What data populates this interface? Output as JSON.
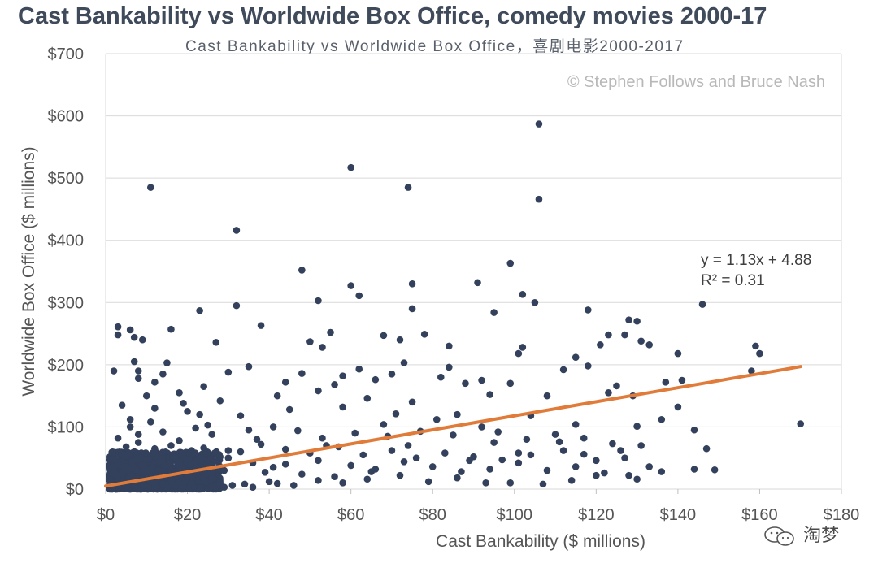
{
  "title": "Cast Bankability vs Worldwide Box Office, comedy movies 2000-17",
  "subtitle": "Cast Bankability vs Worldwide Box Office，喜剧电影2000-2017",
  "watermark": "淘梦",
  "colors": {
    "title": "#3f4a5a",
    "points": "#33415c",
    "trendline": "#e07b39",
    "grid": "#d9d9d9",
    "axis_text": "#555555"
  },
  "chart_data": {
    "type": "scatter",
    "title": "Cast Bankability vs Worldwide Box Office, comedy movies 2000-17",
    "subtitle": "Cast Bankability vs Worldwide Box Office，喜剧电影2000-2017",
    "xlabel": "Cast Bankability ($ millions)",
    "ylabel": "Worldwide Box Office ($ millions)",
    "xlim": [
      0,
      180
    ],
    "ylim": [
      0,
      700
    ],
    "x_ticks": [
      "$0",
      "$20",
      "$40",
      "$60",
      "$80",
      "$100",
      "$120",
      "$140",
      "$160",
      "$180"
    ],
    "y_ticks": [
      "$0",
      "$100",
      "$200",
      "$300",
      "$400",
      "$500",
      "$600",
      "$700"
    ],
    "grid": "horizontal",
    "copyright": "© Stephen Follows and Bruce Nash",
    "trendline": {
      "slope": 1.13,
      "intercept": 4.88,
      "x_range": [
        0,
        170
      ],
      "equation": "y = 1.13x + 4.88",
      "r_squared": "R² = 0.31"
    },
    "points": [
      [
        106,
        587
      ],
      [
        60,
        517
      ],
      [
        11,
        485
      ],
      [
        74,
        485
      ],
      [
        106,
        466
      ],
      [
        32,
        416
      ],
      [
        48,
        352
      ],
      [
        99,
        363
      ],
      [
        60,
        327
      ],
      [
        75,
        330
      ],
      [
        91,
        332
      ],
      [
        62,
        311
      ],
      [
        102,
        313
      ],
      [
        52,
        303
      ],
      [
        105,
        300
      ],
      [
        32,
        295
      ],
      [
        146,
        297
      ],
      [
        75,
        290
      ],
      [
        23,
        287
      ],
      [
        95,
        284
      ],
      [
        118,
        288
      ],
      [
        128,
        272
      ],
      [
        130,
        270
      ],
      [
        3,
        261
      ],
      [
        38,
        263
      ],
      [
        6,
        256
      ],
      [
        16,
        257
      ],
      [
        55,
        252
      ],
      [
        3,
        248
      ],
      [
        7,
        244
      ],
      [
        9,
        240
      ],
      [
        68,
        247
      ],
      [
        78,
        249
      ],
      [
        123,
        248
      ],
      [
        127,
        248
      ],
      [
        27,
        236
      ],
      [
        50,
        237
      ],
      [
        72,
        240
      ],
      [
        131,
        238
      ],
      [
        133,
        232
      ],
      [
        53,
        228
      ],
      [
        84,
        230
      ],
      [
        102,
        228
      ],
      [
        121,
        232
      ],
      [
        159,
        230
      ],
      [
        160,
        218
      ],
      [
        140,
        218
      ],
      [
        101,
        218
      ],
      [
        115,
        212
      ],
      [
        7,
        205
      ],
      [
        15,
        203
      ],
      [
        35,
        197
      ],
      [
        62,
        193
      ],
      [
        73,
        203
      ],
      [
        84,
        196
      ],
      [
        8,
        190
      ],
      [
        14,
        185
      ],
      [
        30,
        188
      ],
      [
        48,
        186
      ],
      [
        58,
        182
      ],
      [
        70,
        185
      ],
      [
        82,
        180
      ],
      [
        92,
        175
      ],
      [
        112,
        192
      ],
      [
        118,
        198
      ],
      [
        8,
        178
      ],
      [
        12,
        172
      ],
      [
        24,
        165
      ],
      [
        44,
        172
      ],
      [
        56,
        168
      ],
      [
        66,
        176
      ],
      [
        88,
        170
      ],
      [
        99,
        170
      ],
      [
        125,
        166
      ],
      [
        137,
        172
      ],
      [
        141,
        175
      ],
      [
        158,
        190
      ],
      [
        10,
        150
      ],
      [
        18,
        155
      ],
      [
        28,
        142
      ],
      [
        42,
        150
      ],
      [
        52,
        158
      ],
      [
        64,
        146
      ],
      [
        75,
        140
      ],
      [
        94,
        152
      ],
      [
        108,
        150
      ],
      [
        123,
        155
      ],
      [
        129,
        150
      ],
      [
        140,
        132
      ],
      [
        12,
        130
      ],
      [
        20,
        125
      ],
      [
        33,
        118
      ],
      [
        45,
        128
      ],
      [
        58,
        132
      ],
      [
        71,
        121
      ],
      [
        81,
        112
      ],
      [
        92,
        100
      ],
      [
        104,
        118
      ],
      [
        115,
        104
      ],
      [
        130,
        101
      ],
      [
        136,
        112
      ],
      [
        6,
        100
      ],
      [
        14,
        92
      ],
      [
        22,
        98
      ],
      [
        26,
        88
      ],
      [
        35,
        95
      ],
      [
        41,
        100
      ],
      [
        47,
        94
      ],
      [
        53,
        82
      ],
      [
        61,
        90
      ],
      [
        69,
        85
      ],
      [
        77,
        93
      ],
      [
        85,
        87
      ],
      [
        95,
        75
      ],
      [
        103,
        80
      ],
      [
        110,
        88
      ],
      [
        117,
        82
      ],
      [
        124,
        73
      ],
      [
        131,
        70
      ],
      [
        144,
        95
      ],
      [
        170,
        105
      ],
      [
        8,
        75
      ],
      [
        16,
        70
      ],
      [
        24,
        66
      ],
      [
        30,
        62
      ],
      [
        38,
        72
      ],
      [
        44,
        64
      ],
      [
        50,
        58
      ],
      [
        57,
        68
      ],
      [
        63,
        55
      ],
      [
        70,
        62
      ],
      [
        76,
        50
      ],
      [
        83,
        58
      ],
      [
        90,
        52
      ],
      [
        97,
        47
      ],
      [
        104,
        55
      ],
      [
        112,
        62
      ],
      [
        120,
        46
      ],
      [
        127,
        50
      ],
      [
        147,
        65
      ],
      [
        17,
        50
      ],
      [
        27,
        45
      ],
      [
        36,
        42
      ],
      [
        44,
        40
      ],
      [
        52,
        46
      ],
      [
        60,
        38
      ],
      [
        66,
        32
      ],
      [
        73,
        44
      ],
      [
        80,
        36
      ],
      [
        87,
        28
      ],
      [
        94,
        32
      ],
      [
        101,
        42
      ],
      [
        108,
        30
      ],
      [
        115,
        36
      ],
      [
        122,
        26
      ],
      [
        128,
        22
      ],
      [
        136,
        28
      ],
      [
        144,
        32
      ],
      [
        149,
        31
      ],
      [
        9,
        38
      ],
      [
        19,
        34
      ],
      [
        29,
        30
      ],
      [
        39,
        27
      ],
      [
        48,
        24
      ],
      [
        56,
        20
      ],
      [
        64,
        16
      ],
      [
        72,
        22
      ],
      [
        79,
        12
      ],
      [
        86,
        18
      ],
      [
        93,
        10
      ],
      [
        99,
        10
      ],
      [
        107,
        8
      ],
      [
        114,
        14
      ],
      [
        120,
        22
      ],
      [
        130,
        16
      ],
      [
        4,
        55
      ],
      [
        7,
        60
      ],
      [
        10,
        48
      ],
      [
        13,
        44
      ],
      [
        18,
        40
      ],
      [
        22,
        35
      ],
      [
        25,
        28
      ],
      [
        3,
        42
      ],
      [
        5,
        36
      ],
      [
        9,
        28
      ],
      [
        15,
        24
      ],
      [
        20,
        20
      ],
      [
        24,
        14
      ],
      [
        28,
        10
      ],
      [
        34,
        8
      ],
      [
        40,
        12
      ],
      [
        46,
        6
      ],
      [
        52,
        14
      ],
      [
        58,
        10
      ],
      [
        2,
        30
      ],
      [
        4,
        24
      ],
      [
        6,
        20
      ],
      [
        8,
        16
      ],
      [
        11,
        12
      ],
      [
        14,
        8
      ],
      [
        17,
        6
      ],
      [
        21,
        10
      ],
      [
        26,
        4
      ],
      [
        31,
        6
      ],
      [
        36,
        3
      ],
      [
        42,
        9
      ],
      [
        1,
        15
      ],
      [
        2,
        10
      ],
      [
        3,
        6
      ],
      [
        5,
        4
      ],
      [
        7,
        8
      ],
      [
        9,
        5
      ],
      [
        12,
        3
      ],
      [
        15,
        2
      ],
      [
        19,
        4
      ],
      [
        23,
        2
      ],
      [
        29,
        3
      ],
      [
        2,
        48
      ],
      [
        5,
        68
      ],
      [
        8,
        88
      ],
      [
        11,
        108
      ],
      [
        3,
        82
      ],
      [
        6,
        112
      ],
      [
        4,
        135
      ],
      [
        2,
        190
      ],
      [
        19,
        138
      ],
      [
        23,
        120
      ],
      [
        25,
        103
      ],
      [
        30,
        50
      ],
      [
        33,
        60
      ],
      [
        37,
        80
      ],
      [
        41,
        35
      ],
      [
        54,
        70
      ],
      [
        65,
        28
      ],
      [
        68,
        104
      ],
      [
        74,
        70
      ],
      [
        86,
        120
      ],
      [
        89,
        46
      ],
      [
        96,
        92
      ],
      [
        101,
        58
      ],
      [
        111,
        76
      ],
      [
        117,
        56
      ],
      [
        126,
        62
      ],
      [
        133,
        36
      ],
      [
        18,
        78
      ],
      [
        21,
        62
      ],
      [
        27,
        56
      ],
      [
        12,
        65
      ],
      [
        16,
        30
      ]
    ],
    "dense_cluster": {
      "x_range": [
        1,
        28
      ],
      "y_range": [
        0,
        60
      ],
      "count": 1300,
      "seed": 7
    }
  }
}
